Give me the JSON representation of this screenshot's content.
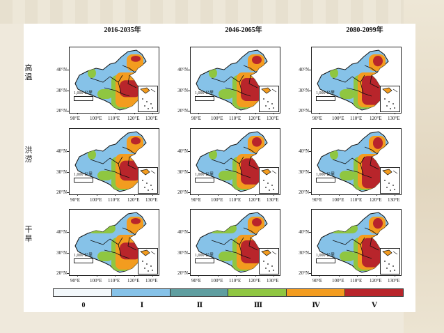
{
  "columns": [
    {
      "title": "2016-2035年"
    },
    {
      "title": "2046-2065年"
    },
    {
      "title": "2080-2099年"
    }
  ],
  "rows": [
    {
      "label": "高温"
    },
    {
      "label": "洪涝"
    },
    {
      "label": "干旱"
    }
  ],
  "axes": {
    "lat_labels": [
      "40°N",
      "30°N",
      "20°N"
    ],
    "lon_labels": [
      "90°E",
      "100°E",
      "110°E",
      "120°E",
      "130°E"
    ]
  },
  "scale_label": "1,000 公里",
  "legend": {
    "labels": [
      "0",
      "Ⅰ",
      "Ⅱ",
      "Ⅲ",
      "Ⅳ",
      "Ⅴ"
    ],
    "colors": [
      "#f3f8fb",
      "#86c2e8",
      "#5f9ea0",
      "#8fc641",
      "#f39c1f",
      "#b8252b"
    ]
  },
  "chart_data": {
    "type": "heatmap",
    "categories": [
      "0",
      "Ⅰ",
      "Ⅱ",
      "Ⅲ",
      "Ⅳ",
      "Ⅴ"
    ],
    "panels": [
      {
        "row": "高温",
        "period": "2016-2035年"
      },
      {
        "row": "高温",
        "period": "2046-2065年"
      },
      {
        "row": "高温",
        "period": "2080-2099年"
      },
      {
        "row": "洪涝",
        "period": "2016-2035年"
      },
      {
        "row": "洪涝",
        "period": "2046-2065年"
      },
      {
        "row": "洪涝",
        "period": "2080-2099年"
      },
      {
        "row": "干旱",
        "period": "2016-2035年"
      },
      {
        "row": "干旱",
        "period": "2046-2065年"
      },
      {
        "row": "干旱",
        "period": "2080-2099年"
      }
    ]
  }
}
